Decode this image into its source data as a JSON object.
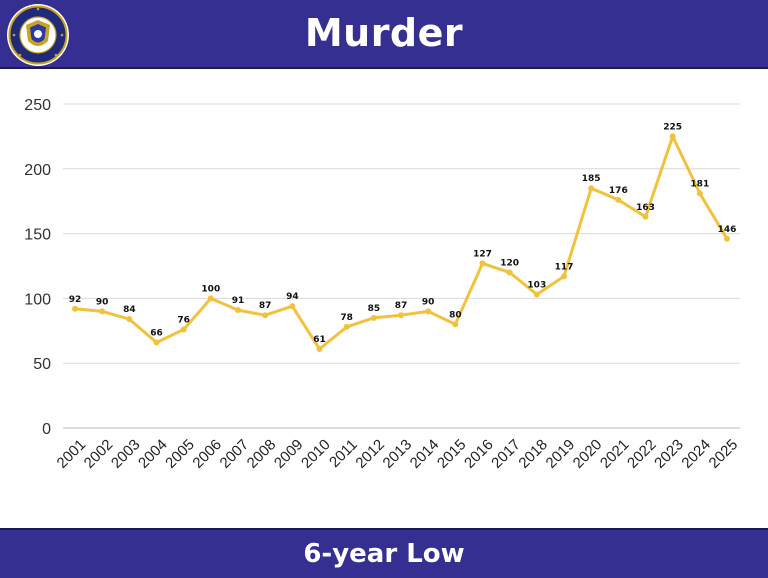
{
  "header": {
    "title": "Murder",
    "seal_icon": "police-seal-icon",
    "background": "#352f91"
  },
  "footer": {
    "text": "6-year Low",
    "background": "#352f91"
  },
  "colors": {
    "line": "#f2c23c",
    "grid": "#d9d9d9"
  },
  "chart_data": {
    "type": "line",
    "title": "Murder",
    "xlabel": "",
    "ylabel": "",
    "ylim": [
      0,
      250
    ],
    "yticks": [
      0,
      50,
      100,
      150,
      200,
      250
    ],
    "grid": true,
    "categories": [
      "2001",
      "2002",
      "2003",
      "2004",
      "2005",
      "2006",
      "2007",
      "2008",
      "2009",
      "2010",
      "2011",
      "2012",
      "2013",
      "2014",
      "2015",
      "2016",
      "2017",
      "2018",
      "2019",
      "2020",
      "2021",
      "2022",
      "2023",
      "2024",
      "2025"
    ],
    "series": [
      {
        "values": [
          92,
          90,
          84,
          66,
          76,
          100,
          91,
          87,
          94,
          61,
          78,
          85,
          87,
          90,
          80,
          127,
          120,
          103,
          117,
          185,
          176,
          163,
          225,
          181,
          146
        ]
      }
    ]
  }
}
